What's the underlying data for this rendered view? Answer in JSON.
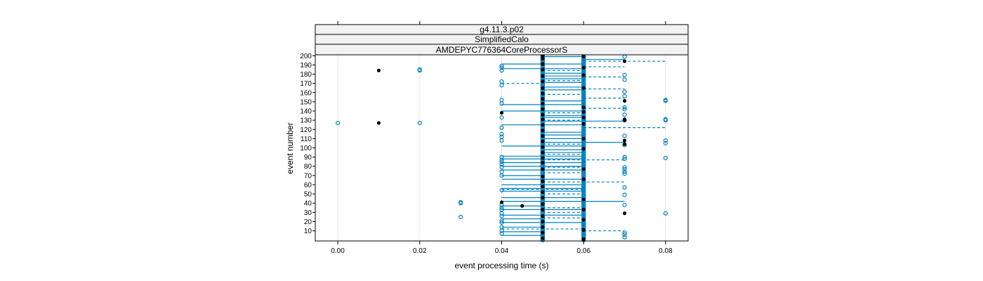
{
  "chart_data": {
    "type": "scatter",
    "strips": [
      "g4.11.3.p02",
      "SimplifiedCalo",
      "AMDEPYC776364CoreProcessorS"
    ],
    "xlabel": "event processing time (s)",
    "ylabel": "event number",
    "xlim": [
      -0.0055,
      0.0855
    ],
    "ylim": [
      -1,
      201
    ],
    "x_ticks": [
      0.0,
      0.02,
      0.04,
      0.06,
      0.08
    ],
    "x_tick_labels": [
      "0.00",
      "0.02",
      "0.04",
      "0.06",
      "0.08"
    ],
    "y_ticks": [
      10,
      20,
      30,
      40,
      50,
      60,
      70,
      80,
      90,
      100,
      110,
      120,
      130,
      140,
      150,
      160,
      170,
      180,
      190,
      200
    ],
    "y_tick_labels": [
      "10",
      "20",
      "30",
      "40",
      "50",
      "60",
      "70",
      "80",
      "90",
      "100",
      "110",
      "120",
      "130",
      "140",
      "150",
      "160",
      "170",
      "180",
      "190",
      "200"
    ],
    "grid": "vertical",
    "colors": {
      "series_a": "#0080c0",
      "series_b": "#000000",
      "strip_bg": "#f2f2f2",
      "grid": "#e6e6e6"
    },
    "series": [
      {
        "marker": "open-circle",
        "points": [
          [
            0.0,
            127
          ],
          [
            0.02,
            127
          ],
          [
            0.02,
            184
          ],
          [
            0.02,
            185
          ],
          [
            0.03,
            25
          ],
          [
            0.03,
            40
          ],
          [
            0.03,
            41
          ],
          [
            0.04,
            7
          ],
          [
            0.04,
            10
          ],
          [
            0.04,
            14
          ],
          [
            0.04,
            19
          ],
          [
            0.04,
            21
          ],
          [
            0.04,
            26
          ],
          [
            0.04,
            29
          ],
          [
            0.04,
            33
          ],
          [
            0.04,
            35
          ],
          [
            0.04,
            38
          ],
          [
            0.04,
            54
          ],
          [
            0.04,
            70
          ],
          [
            0.04,
            74
          ],
          [
            0.04,
            79
          ],
          [
            0.04,
            82
          ],
          [
            0.04,
            85
          ],
          [
            0.04,
            87
          ],
          [
            0.04,
            90
          ],
          [
            0.04,
            108
          ],
          [
            0.04,
            112
          ],
          [
            0.04,
            115
          ],
          [
            0.04,
            122
          ],
          [
            0.04,
            133
          ],
          [
            0.04,
            148
          ],
          [
            0.04,
            152
          ],
          [
            0.04,
            168
          ],
          [
            0.04,
            172
          ],
          [
            0.04,
            184
          ],
          [
            0.04,
            187
          ],
          [
            0.04,
            189
          ],
          [
            0.05,
            12
          ],
          [
            0.05,
            16
          ],
          [
            0.05,
            30
          ],
          [
            0.05,
            45
          ],
          [
            0.05,
            60
          ],
          [
            0.05,
            75
          ],
          [
            0.05,
            83
          ],
          [
            0.05,
            91
          ],
          [
            0.05,
            104
          ],
          [
            0.05,
            118
          ],
          [
            0.05,
            138
          ],
          [
            0.05,
            156
          ],
          [
            0.05,
            170
          ],
          [
            0.05,
            182
          ],
          [
            0.05,
            194
          ],
          [
            0.06,
            5
          ],
          [
            0.06,
            9
          ],
          [
            0.06,
            18
          ],
          [
            0.06,
            27
          ],
          [
            0.06,
            36
          ],
          [
            0.06,
            48
          ],
          [
            0.06,
            55
          ],
          [
            0.06,
            62
          ],
          [
            0.06,
            71
          ],
          [
            0.06,
            80
          ],
          [
            0.06,
            88
          ],
          [
            0.06,
            96
          ],
          [
            0.06,
            100
          ],
          [
            0.06,
            113
          ],
          [
            0.06,
            121
          ],
          [
            0.06,
            129
          ],
          [
            0.06,
            137
          ],
          [
            0.06,
            146
          ],
          [
            0.06,
            154
          ],
          [
            0.06,
            160
          ],
          [
            0.06,
            167
          ],
          [
            0.06,
            176
          ],
          [
            0.06,
            181
          ],
          [
            0.06,
            188
          ],
          [
            0.06,
            193
          ],
          [
            0.06,
            197
          ],
          [
            0.07,
            3
          ],
          [
            0.07,
            6
          ],
          [
            0.07,
            8
          ],
          [
            0.07,
            38
          ],
          [
            0.07,
            49
          ],
          [
            0.07,
            57
          ],
          [
            0.07,
            72
          ],
          [
            0.07,
            74
          ],
          [
            0.07,
            77
          ],
          [
            0.07,
            79
          ],
          [
            0.07,
            88
          ],
          [
            0.07,
            90
          ],
          [
            0.07,
            103
          ],
          [
            0.07,
            113
          ],
          [
            0.07,
            130
          ],
          [
            0.07,
            136
          ],
          [
            0.07,
            142
          ],
          [
            0.07,
            144
          ],
          [
            0.07,
            156
          ],
          [
            0.07,
            161
          ],
          [
            0.07,
            174
          ],
          [
            0.07,
            179
          ],
          [
            0.07,
            199
          ],
          [
            0.08,
            29
          ],
          [
            0.08,
            89
          ],
          [
            0.08,
            105
          ],
          [
            0.08,
            108
          ],
          [
            0.08,
            130
          ],
          [
            0.08,
            131
          ],
          [
            0.08,
            151
          ],
          [
            0.08,
            152
          ]
        ]
      },
      {
        "marker": "filled-circle",
        "points": [
          [
            0.01,
            127
          ],
          [
            0.01,
            184
          ],
          [
            0.04,
            41
          ],
          [
            0.045,
            37
          ],
          [
            0.04,
            138
          ],
          [
            0.05,
            2
          ],
          [
            0.05,
            8
          ],
          [
            0.05,
            14
          ],
          [
            0.05,
            20
          ],
          [
            0.05,
            26
          ],
          [
            0.05,
            33
          ],
          [
            0.05,
            39
          ],
          [
            0.05,
            46
          ],
          [
            0.05,
            52
          ],
          [
            0.05,
            58
          ],
          [
            0.05,
            64
          ],
          [
            0.05,
            69
          ],
          [
            0.05,
            77
          ],
          [
            0.05,
            84
          ],
          [
            0.05,
            89
          ],
          [
            0.05,
            95
          ],
          [
            0.05,
            101
          ],
          [
            0.05,
            107
          ],
          [
            0.05,
            113
          ],
          [
            0.05,
            119
          ],
          [
            0.05,
            125
          ],
          [
            0.05,
            131
          ],
          [
            0.05,
            136
          ],
          [
            0.05,
            142
          ],
          [
            0.05,
            148
          ],
          [
            0.05,
            153
          ],
          [
            0.05,
            159
          ],
          [
            0.05,
            165
          ],
          [
            0.05,
            172
          ],
          [
            0.05,
            178
          ],
          [
            0.05,
            185
          ],
          [
            0.05,
            191
          ],
          [
            0.05,
            197
          ],
          [
            0.05,
            200
          ],
          [
            0.06,
            1
          ],
          [
            0.06,
            11
          ],
          [
            0.06,
            22
          ],
          [
            0.06,
            33
          ],
          [
            0.06,
            44
          ],
          [
            0.06,
            66
          ],
          [
            0.06,
            77
          ],
          [
            0.06,
            99
          ],
          [
            0.06,
            110
          ],
          [
            0.06,
            126
          ],
          [
            0.06,
            133
          ],
          [
            0.06,
            139
          ],
          [
            0.06,
            144
          ],
          [
            0.06,
            165
          ],
          [
            0.06,
            179
          ],
          [
            0.06,
            187
          ],
          [
            0.06,
            199
          ],
          [
            0.07,
            29
          ],
          [
            0.07,
            104
          ],
          [
            0.07,
            108
          ],
          [
            0.07,
            130
          ],
          [
            0.07,
            131
          ],
          [
            0.07,
            151
          ],
          [
            0.07,
            194
          ]
        ]
      }
    ],
    "segments": [
      {
        "style": "solid",
        "lines": [
          [
            0.04,
            5,
            0.05
          ],
          [
            0.04,
            9,
            0.05
          ],
          [
            0.04,
            14,
            0.05
          ],
          [
            0.04,
            19,
            0.06
          ],
          [
            0.04,
            23,
            0.05
          ],
          [
            0.04,
            27,
            0.06
          ],
          [
            0.04,
            33,
            0.06
          ],
          [
            0.04,
            37,
            0.05
          ],
          [
            0.04,
            42,
            0.07
          ],
          [
            0.04,
            46,
            0.06
          ],
          [
            0.04,
            53,
            0.06
          ],
          [
            0.04,
            56,
            0.06
          ],
          [
            0.04,
            60,
            0.06
          ],
          [
            0.04,
            66,
            0.06
          ],
          [
            0.04,
            70,
            0.05
          ],
          [
            0.04,
            76,
            0.06
          ],
          [
            0.04,
            80,
            0.06
          ],
          [
            0.04,
            84,
            0.06
          ],
          [
            0.04,
            88,
            0.06
          ],
          [
            0.04,
            91,
            0.06
          ],
          [
            0.05,
            95,
            0.06
          ],
          [
            0.05,
            98,
            0.06
          ],
          [
            0.04,
            102,
            0.06
          ],
          [
            0.05,
            106,
            0.07
          ],
          [
            0.05,
            110,
            0.06
          ],
          [
            0.05,
            114,
            0.06
          ],
          [
            0.05,
            117,
            0.06
          ],
          [
            0.04,
            125,
            0.06
          ],
          [
            0.05,
            129,
            0.07
          ],
          [
            0.05,
            133,
            0.06
          ],
          [
            0.05,
            135,
            0.06
          ],
          [
            0.04,
            140,
            0.06
          ],
          [
            0.04,
            147,
            0.06
          ],
          [
            0.05,
            151,
            0.06
          ],
          [
            0.05,
            163,
            0.06
          ],
          [
            0.05,
            166,
            0.06
          ],
          [
            0.05,
            171,
            0.06
          ],
          [
            0.05,
            175,
            0.06
          ],
          [
            0.05,
            178,
            0.06
          ],
          [
            0.05,
            181,
            0.06
          ],
          [
            0.04,
            186,
            0.06
          ],
          [
            0.04,
            191,
            0.06
          ],
          [
            0.06,
            196,
            0.07
          ],
          [
            0.05,
            199,
            0.06
          ]
        ]
      },
      {
        "style": "dashed",
        "lines": [
          [
            0.04,
            12,
            0.06
          ],
          [
            0.06,
            10,
            0.07
          ],
          [
            0.05,
            24,
            0.06
          ],
          [
            0.05,
            30,
            0.06
          ],
          [
            0.05,
            35,
            0.06
          ],
          [
            0.05,
            50,
            0.06
          ],
          [
            0.04,
            55,
            0.06
          ],
          [
            0.05,
            63,
            0.07
          ],
          [
            0.05,
            73,
            0.06
          ],
          [
            0.05,
            79,
            0.06
          ],
          [
            0.05,
            87,
            0.07
          ],
          [
            0.05,
            93,
            0.06
          ],
          [
            0.05,
            104,
            0.06
          ],
          [
            0.06,
            122,
            0.08
          ],
          [
            0.05,
            130,
            0.06
          ],
          [
            0.05,
            138,
            0.06
          ],
          [
            0.06,
            143,
            0.07
          ],
          [
            0.06,
            154,
            0.07
          ],
          [
            0.05,
            158,
            0.06
          ],
          [
            0.06,
            164,
            0.07
          ],
          [
            0.04,
            170,
            0.05
          ],
          [
            0.05,
            173,
            0.06
          ],
          [
            0.06,
            177,
            0.07
          ],
          [
            0.05,
            184,
            0.06
          ],
          [
            0.06,
            188,
            0.07
          ],
          [
            0.06,
            194,
            0.08
          ]
        ]
      }
    ]
  }
}
